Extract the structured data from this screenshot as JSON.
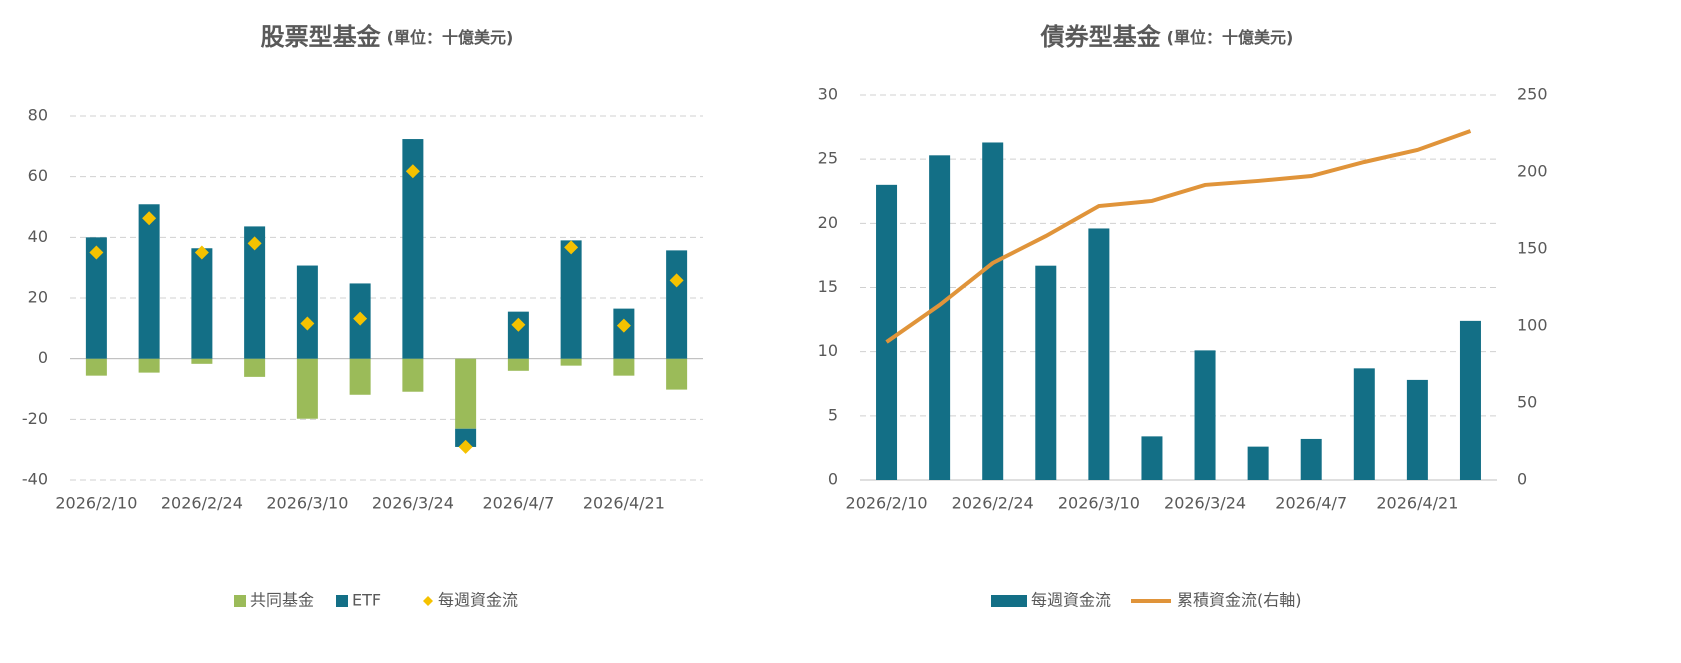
{
  "chart_data": [
    {
      "type": "bar",
      "title": "股票型基金",
      "subtitle": "(單位：十億美元)",
      "stacked": true,
      "grid": true,
      "categories": [
        "2026/2/10",
        null,
        "2026/2/24",
        null,
        "2026/3/10",
        null,
        "2026/3/24",
        null,
        "2026/4/7",
        null,
        "2026/4/21",
        null
      ],
      "ylim": [
        -40,
        80
      ],
      "yticks": [
        -40,
        -20,
        0,
        20,
        40,
        60,
        80
      ],
      "series": [
        {
          "name": "共同基金",
          "type": "bar",
          "color": "#9bbb59",
          "values": [
            -5.6,
            -4.6,
            -1.7,
            -6,
            -19.8,
            -11.9,
            -10.9,
            -23.1,
            -4,
            -2.3,
            -5.6,
            -10.2
          ]
        },
        {
          "name": "ETF",
          "type": "bar",
          "color": "#136f86",
          "values": [
            40,
            50.9,
            36.4,
            43.6,
            30.7,
            24.8,
            72.4,
            -6,
            15.5,
            39,
            16.5,
            35.7
          ]
        },
        {
          "name": "每週資金流",
          "type": "scatter",
          "color": "#f5c200",
          "values": [
            35,
            46.3,
            35,
            38,
            11.6,
            13.2,
            61.8,
            -29.1,
            11.2,
            36.7,
            10.9,
            25.8
          ]
        }
      ]
    },
    {
      "type": "bar",
      "title": "債券型基金",
      "subtitle": "(單位：十億美元)",
      "grid": true,
      "categories": [
        "2026/2/10",
        null,
        "2026/2/24",
        null,
        "2026/3/10",
        null,
        "2026/3/24",
        null,
        "2026/4/7",
        null,
        "2026/4/21",
        null
      ],
      "ylim": [
        0,
        30
      ],
      "yticks": [
        0,
        5,
        10,
        15,
        20,
        25,
        30
      ],
      "y2lim": [
        0,
        250
      ],
      "y2ticks": [
        0,
        50,
        100,
        150,
        200,
        250
      ],
      "series": [
        {
          "name": "每週資金流",
          "type": "bar",
          "color": "#136f86",
          "values": [
            23,
            25.3,
            26.3,
            16.7,
            19.6,
            3.4,
            10.1,
            2.6,
            3.2,
            8.7,
            7.8,
            12.4
          ]
        },
        {
          "name": "累積資金流(右軸)",
          "type": "line",
          "axis": "y2",
          "color": "#e0943a",
          "values": [
            89.6,
            113.6,
            140.9,
            158.4,
            177.9,
            181.2,
            191.6,
            194.2,
            197.4,
            206.5,
            214.3,
            226.6
          ]
        }
      ]
    }
  ]
}
